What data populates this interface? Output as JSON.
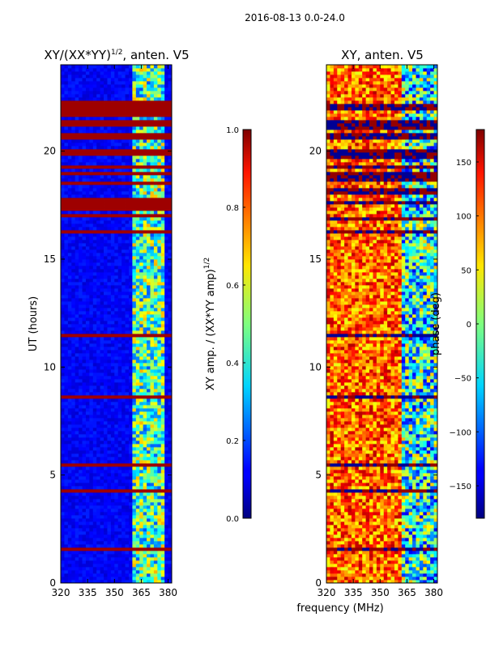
{
  "chart_data": [
    {
      "type": "heatmap",
      "title_main": "XY/(XX*YY)",
      "title_sup": "1/2",
      "title_rest": ", anten. V5",
      "ylabel": "UT (hours)",
      "xlabel": "",
      "xticks": [
        "320",
        "335",
        "350",
        "365",
        "380"
      ],
      "xtick_values": [
        320,
        335,
        350,
        365,
        380
      ],
      "yticks": [
        "0",
        "5",
        "10",
        "15",
        "20"
      ],
      "ytick_values": [
        0,
        5,
        10,
        15,
        20
      ],
      "xlim": [
        320,
        382
      ],
      "ylim": [
        0,
        24
      ],
      "colorbar": {
        "label_main": "XY amp. / (XX*YY amp)",
        "label_sup": "1/2",
        "ticks": [
          "0.0",
          "0.2",
          "0.4",
          "0.6",
          "0.8",
          "1.0"
        ],
        "tick_values": [
          0.0,
          0.2,
          0.4,
          0.6,
          0.8,
          1.0
        ],
        "range": [
          0.0,
          1.0
        ]
      }
    },
    {
      "type": "heatmap",
      "title": "XY, anten. V5",
      "ylabel": "",
      "xlabel": "frequency (MHz)",
      "xticks": [
        "320",
        "335",
        "350",
        "365",
        "380"
      ],
      "xtick_values": [
        320,
        335,
        350,
        365,
        380
      ],
      "yticks": [
        "0",
        "5",
        "10",
        "15",
        "20"
      ],
      "ytick_values": [
        0,
        5,
        10,
        15,
        20
      ],
      "xlim": [
        320,
        382
      ],
      "ylim": [
        0,
        24
      ],
      "colorbar": {
        "label": "phase (deg)",
        "ticks": [
          "−150",
          "−100",
          "−50",
          "0",
          "50",
          "100",
          "150"
        ],
        "tick_values": [
          -150,
          -100,
          -50,
          0,
          50,
          100,
          150
        ],
        "range": [
          -180,
          180
        ]
      }
    }
  ],
  "suptitle": "2016-08-13 0.0-24.0"
}
